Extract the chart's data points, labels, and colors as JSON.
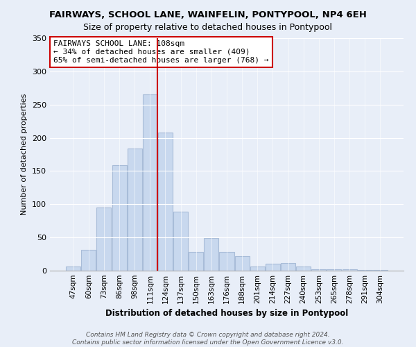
{
  "title": "FAIRWAYS, SCHOOL LANE, WAINFELIN, PONTYPOOL, NP4 6EH",
  "subtitle": "Size of property relative to detached houses in Pontypool",
  "xlabel": "Distribution of detached houses by size in Pontypool",
  "ylabel": "Number of detached properties",
  "bar_color": "#c8d8ee",
  "bar_edge_color": "#a8bcd8",
  "categories": [
    "47sqm",
    "60sqm",
    "73sqm",
    "86sqm",
    "98sqm",
    "111sqm",
    "124sqm",
    "137sqm",
    "150sqm",
    "163sqm",
    "176sqm",
    "188sqm",
    "201sqm",
    "214sqm",
    "227sqm",
    "240sqm",
    "253sqm",
    "265sqm",
    "278sqm",
    "291sqm",
    "304sqm"
  ],
  "values": [
    6,
    31,
    95,
    159,
    184,
    265,
    208,
    89,
    28,
    49,
    28,
    22,
    6,
    10,
    11,
    6,
    2,
    2,
    2,
    1,
    1
  ],
  "marker_bar_index": 5,
  "marker_line_color": "#cc0000",
  "annotation_text_line1": "FAIRWAYS SCHOOL LANE: 108sqm",
  "annotation_text_line2": "← 34% of detached houses are smaller (409)",
  "annotation_text_line3": "65% of semi-detached houses are larger (768) →",
  "ylim": [
    0,
    350
  ],
  "yticks": [
    0,
    50,
    100,
    150,
    200,
    250,
    300,
    350
  ],
  "footer_line1": "Contains HM Land Registry data © Crown copyright and database right 2024.",
  "footer_line2": "Contains public sector information licensed under the Open Government Licence v3.0.",
  "background_color": "#e8eef8",
  "plot_background_color": "#e8eef8",
  "grid_color": "#ffffff",
  "title_fontsize": 9.5,
  "xlabel_fontsize": 8.5,
  "ylabel_fontsize": 8,
  "footer_fontsize": 6.5,
  "annotation_fontsize": 8
}
